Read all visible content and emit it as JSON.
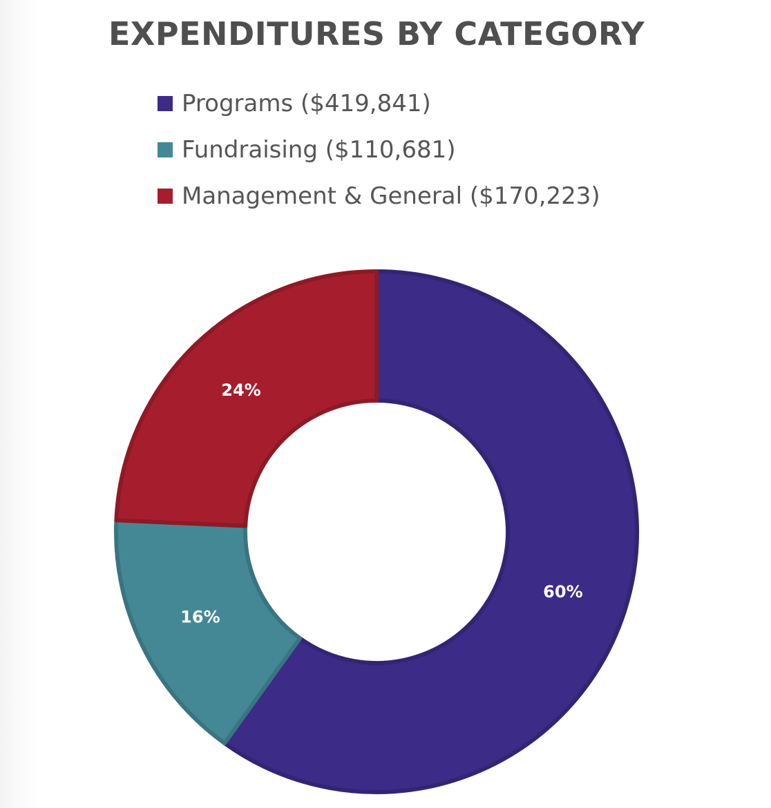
{
  "chart_data": {
    "type": "pie",
    "variant": "donut",
    "title": "EXPENDITURES BY CATEGORY",
    "categories": [
      "Programs",
      "Fundraising",
      "Management & General"
    ],
    "values": [
      419841,
      110681,
      170223
    ],
    "percent_labels": [
      "60%",
      "16%",
      "24%"
    ],
    "legend_labels": [
      "Programs ($419,841)",
      "Fundraising ($110,681)",
      "Management & General ($170,223)"
    ],
    "colors": [
      "#3c2b87",
      "#448896",
      "#a61e2d"
    ],
    "legend_position": "top"
  }
}
